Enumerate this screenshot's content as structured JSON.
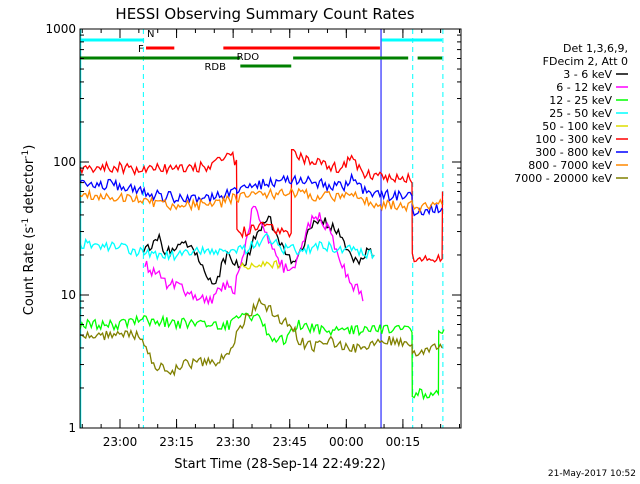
{
  "chart_data": {
    "type": "line",
    "title": "HESSI Observing Summary Count Rates",
    "xlabel": "Start Time (28-Sep-14 22:49:22)",
    "ylabel": "Count Rate (s-1 detector-1)",
    "y_scale": "log",
    "ylim": [
      1,
      1000
    ],
    "x_unit": "minutes after 22:49:22",
    "xlim": [
      0,
      101
    ],
    "x_ticks": [
      {
        "x": 10.6,
        "label": "23:00"
      },
      {
        "x": 25.6,
        "label": "23:15"
      },
      {
        "x": 40.6,
        "label": "23:30"
      },
      {
        "x": 55.6,
        "label": "23:45"
      },
      {
        "x": 70.6,
        "label": "00:00"
      },
      {
        "x": 85.6,
        "label": "00:15"
      }
    ],
    "y_ticks": [
      {
        "y": 1,
        "label": "1"
      },
      {
        "y": 10,
        "label": "10"
      },
      {
        "y": 100,
        "label": "100"
      },
      {
        "y": 1000,
        "label": "1000"
      }
    ],
    "legend_header": [
      "Det 1,3,6,9,",
      "FDecim 2, Att 0"
    ],
    "series": [
      {
        "name": "3 - 6 keV",
        "color": "#000000",
        "points": [
          [
            16.8,
            22
          ],
          [
            18,
            22
          ],
          [
            20,
            25
          ],
          [
            21,
            28
          ],
          [
            22,
            22
          ],
          [
            24,
            21
          ],
          [
            26,
            22
          ],
          [
            28,
            25
          ],
          [
            30,
            22
          ],
          [
            32,
            18
          ],
          [
            33,
            14
          ],
          [
            35,
            12
          ],
          [
            36,
            13
          ],
          [
            37,
            15
          ],
          [
            39,
            20
          ],
          [
            40,
            19
          ],
          [
            42,
            16
          ],
          [
            44,
            18
          ],
          [
            46,
            26
          ],
          [
            48,
            33
          ],
          [
            50,
            38
          ],
          [
            52,
            30
          ],
          [
            54,
            22
          ],
          [
            56,
            18
          ],
          [
            58,
            20
          ],
          [
            60,
            28
          ],
          [
            62,
            35
          ],
          [
            64,
            36
          ],
          [
            66,
            34
          ],
          [
            68,
            30
          ],
          [
            70,
            25
          ],
          [
            72,
            20
          ],
          [
            74,
            16
          ],
          [
            76,
            22
          ],
          [
            78,
            20
          ]
        ]
      },
      {
        "name": "6 - 12 keV",
        "color": "#ff00ff",
        "points": [
          [
            17.2,
            17
          ],
          [
            19,
            15
          ],
          [
            21,
            14
          ],
          [
            23,
            12
          ],
          [
            25,
            12
          ],
          [
            27,
            11
          ],
          [
            29,
            10
          ],
          [
            31,
            10
          ],
          [
            33,
            9.5
          ],
          [
            35,
            9
          ],
          [
            37,
            11
          ],
          [
            39,
            12
          ],
          [
            41,
            11
          ],
          [
            42,
            15
          ],
          [
            44,
            25
          ],
          [
            46,
            48
          ],
          [
            48,
            35
          ],
          [
            50,
            26
          ],
          [
            52,
            20
          ],
          [
            54,
            16
          ],
          [
            56,
            15
          ],
          [
            58,
            20
          ],
          [
            60,
            30
          ],
          [
            62,
            40
          ],
          [
            64,
            38
          ],
          [
            66,
            30
          ],
          [
            68,
            22
          ],
          [
            70,
            16
          ],
          [
            72,
            12
          ],
          [
            74,
            11
          ],
          [
            75,
            9
          ]
        ]
      },
      {
        "name": "12 - 25 keV",
        "color": "#00ff00",
        "points": [
          [
            0,
            6
          ],
          [
            10,
            6
          ],
          [
            17,
            6.5
          ],
          [
            30,
            6
          ],
          [
            40,
            6
          ],
          [
            44,
            7
          ],
          [
            48,
            6.5
          ],
          [
            50,
            5
          ],
          [
            54,
            4.5
          ],
          [
            58,
            6
          ],
          [
            62,
            5.5
          ],
          [
            70,
            5.5
          ],
          [
            80,
            5.5
          ],
          [
            88,
            5.5
          ],
          [
            88.1,
            1.8
          ],
          [
            95,
            1.8
          ],
          [
            95.1,
            5.5
          ],
          [
            96.5,
            5.5
          ]
        ]
      },
      {
        "name": "25 - 50 keV",
        "color": "#00ffff",
        "points": [
          [
            0,
            24
          ],
          [
            10,
            23
          ],
          [
            17,
            21
          ],
          [
            20,
            20
          ],
          [
            25,
            20
          ],
          [
            30,
            21
          ],
          [
            35,
            21
          ],
          [
            40,
            22
          ],
          [
            44,
            22
          ],
          [
            48,
            26
          ],
          [
            50,
            27
          ],
          [
            52,
            24
          ],
          [
            54,
            22
          ],
          [
            58,
            22
          ],
          [
            62,
            23
          ],
          [
            66,
            23
          ],
          [
            70,
            22
          ],
          [
            74,
            21
          ],
          [
            78,
            20
          ]
        ]
      },
      {
        "name": "50 - 100 keV",
        "color": "#dddd00",
        "points": [
          [
            42.5,
            16
          ],
          [
            45,
            17
          ],
          [
            50,
            17.5
          ],
          [
            53,
            17
          ]
        ]
      },
      {
        "name": "100 - 300 keV",
        "color": "#ff0000",
        "points": [
          [
            0,
            88
          ],
          [
            8,
            92
          ],
          [
            16,
            88
          ],
          [
            25,
            90
          ],
          [
            30,
            90
          ],
          [
            35,
            95
          ],
          [
            38,
            105
          ],
          [
            40,
            115
          ],
          [
            41.5,
            97
          ],
          [
            41.6,
            30
          ],
          [
            44,
            30
          ],
          [
            47,
            32
          ],
          [
            50,
            35
          ],
          [
            53,
            30
          ],
          [
            56,
            30
          ],
          [
            56.1,
            115
          ],
          [
            60,
            105
          ],
          [
            64,
            95
          ],
          [
            68,
            90
          ],
          [
            70,
            92
          ],
          [
            72,
            110
          ],
          [
            74,
            90
          ],
          [
            76,
            80
          ],
          [
            80,
            76
          ],
          [
            88,
            76
          ],
          [
            88.1,
            19
          ],
          [
            96,
            19
          ],
          [
            96.1,
            60
          ]
        ]
      },
      {
        "name": "300 - 800 keV",
        "color": "#0000ff",
        "points": [
          [
            0,
            68
          ],
          [
            8,
            68
          ],
          [
            16,
            60
          ],
          [
            22,
            55
          ],
          [
            30,
            53
          ],
          [
            38,
            56
          ],
          [
            41.5,
            62
          ],
          [
            41.6,
            62
          ],
          [
            48,
            68
          ],
          [
            56,
            75
          ],
          [
            62,
            70
          ],
          [
            68,
            65
          ],
          [
            70,
            66
          ],
          [
            72,
            75
          ],
          [
            74,
            65
          ],
          [
            78,
            58
          ],
          [
            82,
            56
          ],
          [
            88,
            56
          ],
          [
            88.1,
            42
          ],
          [
            96,
            45
          ]
        ]
      },
      {
        "name": "800 - 7000 keV",
        "color": "#ff8800",
        "points": [
          [
            0,
            57
          ],
          [
            8,
            56
          ],
          [
            16,
            52
          ],
          [
            22,
            48
          ],
          [
            30,
            47
          ],
          [
            38,
            50
          ],
          [
            41.5,
            54
          ],
          [
            48,
            56
          ],
          [
            56,
            60
          ],
          [
            62,
            56
          ],
          [
            68,
            54
          ],
          [
            70,
            55
          ],
          [
            72,
            60
          ],
          [
            74,
            52
          ],
          [
            78,
            48
          ],
          [
            82,
            47
          ],
          [
            88,
            47
          ],
          [
            88.1,
            45
          ],
          [
            96,
            48
          ]
        ]
      },
      {
        "name": "7000 - 20000 keV",
        "color": "#808000",
        "points": [
          [
            0,
            5
          ],
          [
            8,
            5
          ],
          [
            16,
            5
          ],
          [
            18,
            3.5
          ],
          [
            20,
            3
          ],
          [
            24,
            2.6
          ],
          [
            28,
            3
          ],
          [
            32,
            3.2
          ],
          [
            36,
            3
          ],
          [
            40,
            4
          ],
          [
            44,
            7
          ],
          [
            48,
            9
          ],
          [
            50,
            8
          ],
          [
            52,
            7
          ],
          [
            56,
            6
          ],
          [
            58,
            4.5
          ],
          [
            62,
            4
          ],
          [
            66,
            4.5
          ],
          [
            70,
            4
          ],
          [
            74,
            4
          ],
          [
            78,
            4.5
          ],
          [
            82,
            4.5
          ],
          [
            88,
            4.5
          ],
          [
            88.1,
            3.8
          ],
          [
            96,
            4
          ]
        ]
      }
    ],
    "flags": [
      {
        "label": "N",
        "color": "#00ffff",
        "segments": [
          [
            0,
            17
          ],
          [
            80,
            96
          ]
        ]
      },
      {
        "label": "F",
        "color": "#ff0000",
        "segments": [
          [
            17.5,
            25
          ],
          [
            38,
            79.5
          ]
        ]
      },
      {
        "label": "RDO",
        "color": "#008000",
        "segments": [
          [
            0,
            42.5
          ],
          [
            56.5,
            87
          ],
          [
            89.5,
            96
          ]
        ]
      },
      {
        "label": "RDB",
        "color": "#008000",
        "segments": [
          [
            42.5,
            56
          ]
        ]
      }
    ],
    "vertical_lines": [
      {
        "x": 0.2,
        "color": "#00ffff",
        "style": "solid"
      },
      {
        "x": 16.8,
        "color": "#00ffff",
        "style": "dashed"
      },
      {
        "x": 79.8,
        "color": "#0000ff",
        "style": "solid"
      },
      {
        "x": 88.2,
        "color": "#00ffff",
        "style": "dashed"
      },
      {
        "x": 96.2,
        "color": "#00ffff",
        "style": "dashed"
      }
    ],
    "grid": false,
    "legend_placement": "right"
  },
  "footer": {
    "date_stamp": "21-May-2017 10:52"
  }
}
